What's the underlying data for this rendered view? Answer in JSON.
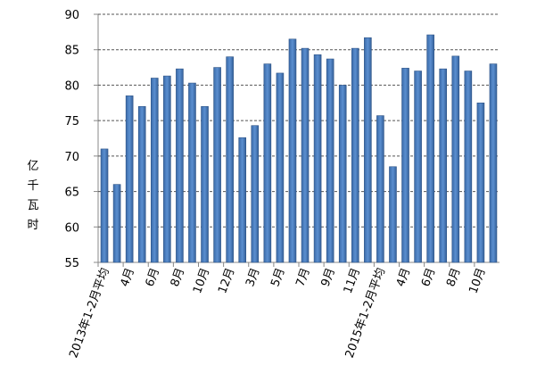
{
  "chart_data": {
    "type": "bar",
    "y_label": "亿千瓦时",
    "categories": [
      "2013年1-2月平均",
      null,
      "4月",
      null,
      "6月",
      null,
      "8月",
      null,
      "10月",
      null,
      "12月",
      null,
      "3月",
      null,
      "5月",
      null,
      "7月",
      null,
      "9月",
      null,
      "11月",
      null,
      "2015年1-2月平均",
      null,
      "4月",
      null,
      "6月",
      null,
      "8月",
      null,
      "10月",
      null
    ],
    "values": [
      71,
      66,
      78.5,
      77,
      81,
      81.3,
      82.3,
      80.3,
      77,
      82.5,
      84,
      72.6,
      74.3,
      83,
      81.7,
      86.5,
      85.2,
      84.3,
      83.7,
      80,
      85.2,
      86.7,
      75.7,
      68.5,
      82.4,
      82,
      87.1,
      82.3,
      84.1,
      82,
      77.5,
      83
    ],
    "color": "#4f81bd",
    "ylim": [
      55,
      90
    ],
    "yticks": [
      55,
      60,
      65,
      70,
      75,
      80,
      85,
      90
    ],
    "grid": true
  }
}
